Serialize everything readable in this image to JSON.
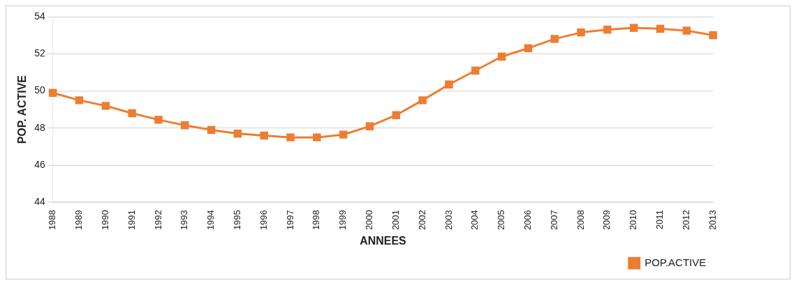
{
  "chart_data": {
    "type": "line",
    "xlabel": "ANNEES",
    "ylabel": "POP. ACTIVE",
    "categories": [
      "1988",
      "1989",
      "1990",
      "1991",
      "1992",
      "1993",
      "1994",
      "1995",
      "1996",
      "1997",
      "1998",
      "1999",
      "2000",
      "2001",
      "2002",
      "2003",
      "2004",
      "2005",
      "2006",
      "2007",
      "2008",
      "2009",
      "2010",
      "2011",
      "2012",
      "2013"
    ],
    "series": [
      {
        "name": "POP.ACTIVE",
        "color": "#ed7d31",
        "values": [
          49.9,
          49.5,
          49.2,
          48.8,
          48.45,
          48.15,
          47.9,
          47.7,
          47.6,
          47.5,
          47.5,
          47.65,
          48.1,
          48.7,
          49.5,
          50.35,
          51.1,
          51.85,
          52.3,
          52.8,
          53.15,
          53.3,
          53.4,
          53.35,
          53.25,
          53.0
        ]
      }
    ],
    "ylim": [
      44,
      54
    ],
    "yticks": [
      44,
      46,
      48,
      50,
      52,
      54
    ],
    "grid": "y",
    "legend": "bottom",
    "marker": "square",
    "line_style": "solid"
  }
}
